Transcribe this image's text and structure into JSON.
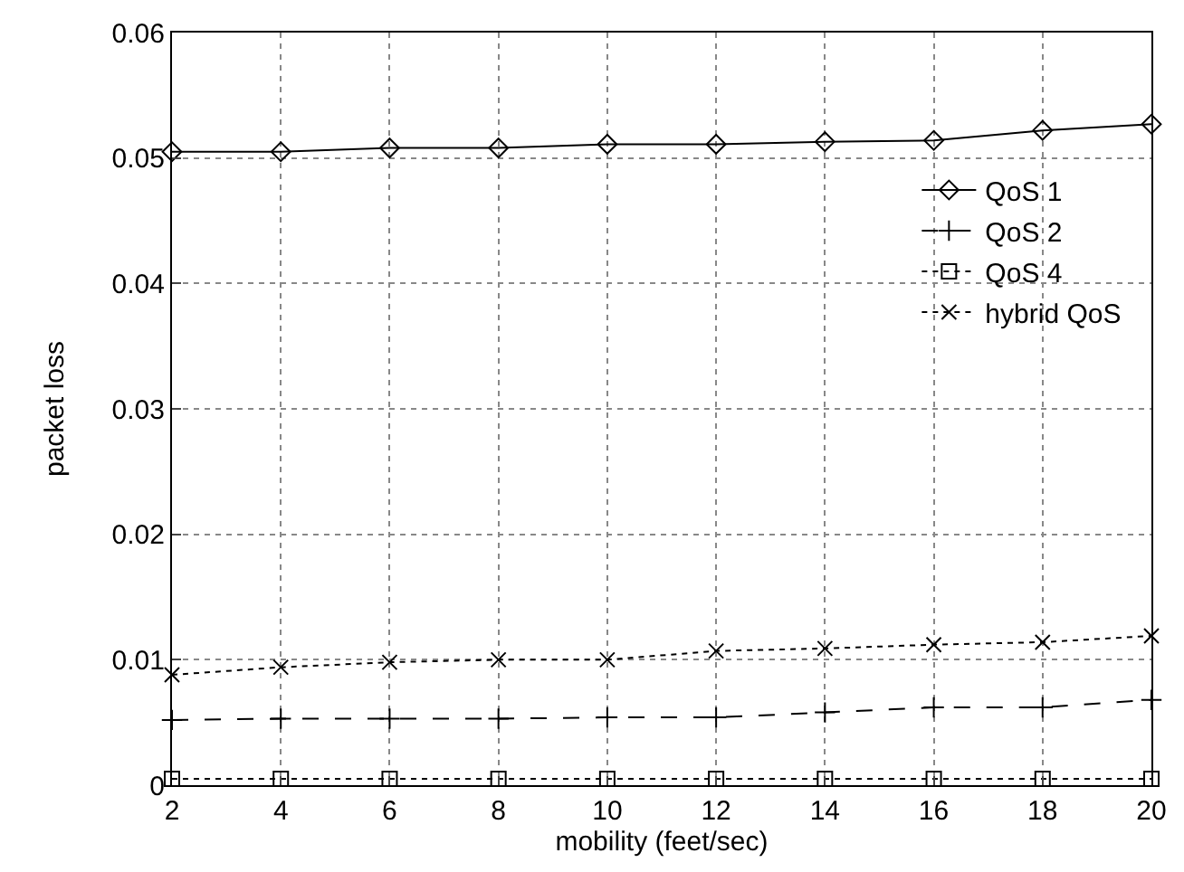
{
  "chart_data": {
    "type": "line",
    "xlabel": "mobility (feet/sec)",
    "ylabel": "packet loss",
    "x": [
      2,
      4,
      6,
      8,
      10,
      12,
      14,
      16,
      18,
      20
    ],
    "series": [
      {
        "name": "QoS 1",
        "color": "#000000",
        "marker": "diamond",
        "line_style": "solid",
        "values": [
          0.0505,
          0.0505,
          0.0508,
          0.0508,
          0.0511,
          0.0511,
          0.0513,
          0.0514,
          0.0522,
          0.0527
        ]
      },
      {
        "name": "QoS 2",
        "color": "#000000",
        "marker": "cross",
        "line_style": "dashed",
        "values": [
          0.0052,
          0.0053,
          0.0053,
          0.0053,
          0.0054,
          0.0054,
          0.0058,
          0.0062,
          0.0062,
          0.0068
        ]
      },
      {
        "name": "QoS 4",
        "color": "#000000",
        "marker": "square",
        "line_style": "dotted",
        "values": [
          0.0005,
          0.0005,
          0.0005,
          0.0005,
          0.0005,
          0.0005,
          0.0005,
          0.0005,
          0.0005,
          0.0005
        ]
      },
      {
        "name": "hybrid QoS",
        "color": "#000000",
        "marker": "x",
        "line_style": "dotted",
        "values": [
          0.0088,
          0.0094,
          0.0098,
          0.01,
          0.01,
          0.0107,
          0.0109,
          0.0112,
          0.0114,
          0.0119
        ]
      }
    ],
    "xlim": [
      2,
      20
    ],
    "xticks": [
      2,
      4,
      6,
      8,
      10,
      12,
      14,
      16,
      18,
      20
    ],
    "ylim": [
      0,
      0.06
    ],
    "yticks": [
      {
        "value": 0,
        "label": "0"
      },
      {
        "value": 0.01,
        "label": "0.01"
      },
      {
        "value": 0.02,
        "label": "0.02"
      },
      {
        "value": 0.03,
        "label": "0.03"
      },
      {
        "value": 0.04,
        "label": "0.04"
      },
      {
        "value": 0.05,
        "label": "0.05"
      },
      {
        "value": 0.06,
        "label": "0.06"
      }
    ],
    "grid": true,
    "legend": "top right"
  }
}
